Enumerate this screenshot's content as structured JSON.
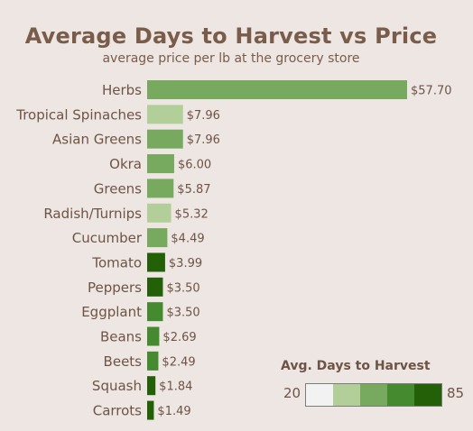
{
  "chart_data": {
    "type": "bar",
    "orientation": "horizontal",
    "title": "Average Days to Harvest vs Price",
    "subtitle": "average price per lb at the grocery store",
    "categories": [
      "Herbs",
      "Tropical Spinaches",
      "Asian Greens",
      "Okra",
      "Greens",
      "Radish/Turnips",
      "Cucumber",
      "Tomato",
      "Peppers",
      "Eggplant",
      "Beans",
      "Beets",
      "Squash",
      "Carrots"
    ],
    "values": [
      57.7,
      7.96,
      7.96,
      6.0,
      5.87,
      5.32,
      4.49,
      3.99,
      3.5,
      3.5,
      2.69,
      2.49,
      1.84,
      1.49
    ],
    "value_labels": [
      "$57.70",
      "$7.96",
      "$7.96",
      "$6.00",
      "$5.87",
      "$5.32",
      "$4.49",
      "$3.99",
      "$3.50",
      "$3.50",
      "$2.69",
      "$2.49",
      "$1.84",
      "$1.49"
    ],
    "color_metric": "Avg. Days to Harvest",
    "color_bins": [
      3,
      2,
      3,
      3,
      3,
      2,
      3,
      5,
      5,
      4,
      4,
      4,
      5,
      5
    ],
    "xlim": [
      0,
      57.7
    ],
    "legend": {
      "title": "Avg. Days to Harvest",
      "min_label": "20",
      "max_label": "85",
      "range": [
        20,
        85
      ],
      "colors": [
        "#f2f2f2",
        "#b2cf9a",
        "#77aa5e",
        "#468a2f",
        "#236008"
      ]
    }
  }
}
